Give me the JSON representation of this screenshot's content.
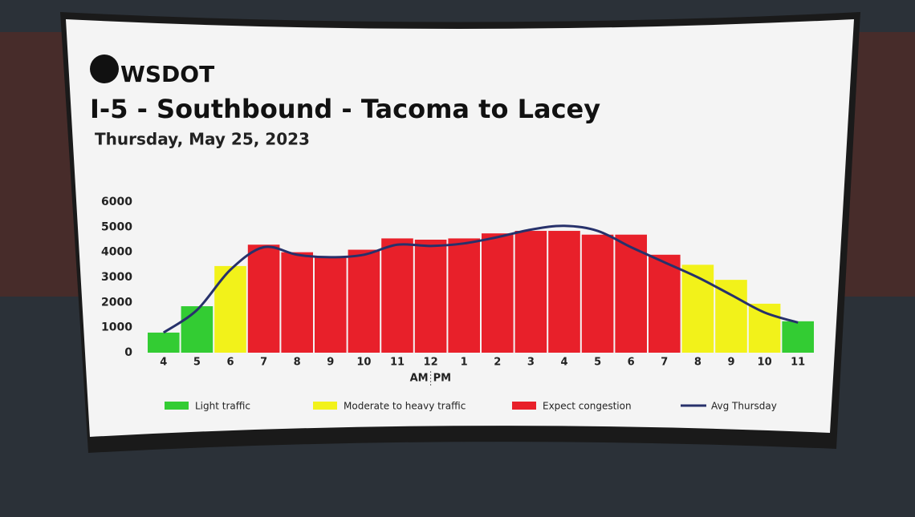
{
  "chart_data": {
    "type": "bar",
    "logo": "WSDOT",
    "title": "I-5 - Southbound - Tacoma to Lacey",
    "subtitle": "Thursday, May 25, 2023",
    "categories": [
      "4",
      "5",
      "6",
      "7",
      "8",
      "9",
      "10",
      "11",
      "12",
      "1",
      "2",
      "3",
      "4",
      "5",
      "6",
      "7",
      "8",
      "9",
      "10",
      "11"
    ],
    "am_pm_labels": [
      "AM",
      "PM"
    ],
    "ylim": [
      0,
      6000
    ],
    "yticks": [
      0,
      1000,
      2000,
      3000,
      4000,
      5000,
      6000
    ],
    "series": [
      {
        "name": "Light traffic",
        "color": "#33cc33",
        "values": [
          800,
          1850,
          null,
          null,
          null,
          null,
          null,
          null,
          null,
          null,
          null,
          null,
          null,
          null,
          null,
          null,
          null,
          null,
          null,
          1250
        ]
      },
      {
        "name": "Moderate to heavy traffic",
        "color": "#f2f21a",
        "values": [
          null,
          null,
          3450,
          null,
          null,
          null,
          null,
          null,
          null,
          null,
          null,
          null,
          null,
          null,
          null,
          null,
          3500,
          2900,
          1950,
          null
        ]
      },
      {
        "name": "Expect congestion",
        "color": "#e8202a",
        "values": [
          null,
          null,
          null,
          4300,
          4000,
          3800,
          4100,
          4550,
          4500,
          4550,
          4750,
          4850,
          4850,
          4700,
          4700,
          3900,
          null,
          null,
          null,
          null
        ]
      },
      {
        "name": "Avg Thursday",
        "type": "line",
        "color": "#27316b",
        "values": [
          800,
          1700,
          3300,
          4200,
          3900,
          3800,
          3900,
          4300,
          4250,
          4350,
          4600,
          4900,
          5050,
          4850,
          4200,
          3600,
          3000,
          2300,
          1600,
          1200
        ]
      }
    ]
  }
}
